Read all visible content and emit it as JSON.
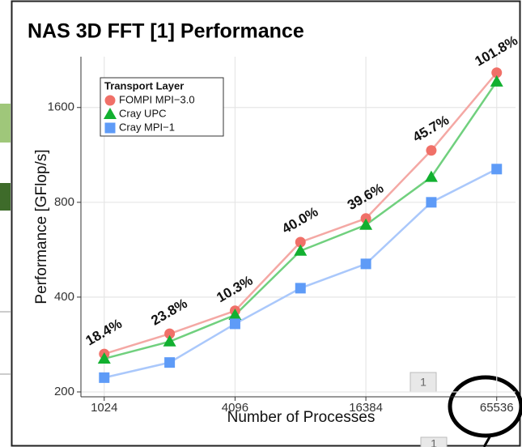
{
  "chart_data": {
    "type": "line",
    "title": "NAS 3D FFT [1] Performance",
    "x_label": "Number of Processes",
    "y_label": "Performance [GFlop/s]",
    "x": [
      1024,
      2048,
      4096,
      8192,
      16384,
      32768,
      65536
    ],
    "xscale": "log2",
    "yscale": "log2",
    "xlim": [
      800,
      80000
    ],
    "ylim": [
      193,
      2320
    ],
    "xticks": [
      1024,
      4096,
      16384,
      65536
    ],
    "yticks": [
      200,
      400,
      800,
      1600
    ],
    "grid": true,
    "legend_title": "Transport Layer",
    "legend_position": "top-left",
    "series": [
      {
        "name": "FOMPI MPI−3.0",
        "color": "#f07068",
        "line_color": "#f4a8a4",
        "marker": "circle",
        "values": [
          264,
          306,
          362,
          598,
          711,
          1169,
          2064
        ]
      },
      {
        "name": "Cray UPC",
        "color": "#12b030",
        "line_color": "#70d07e",
        "marker": "triangle",
        "values": [
          255,
          289,
          351,
          561,
          678,
          962,
          1933
        ]
      },
      {
        "name": "Cray MPI−1",
        "color": "#5e9bf7",
        "line_color": "#aac8fb",
        "marker": "square",
        "values": [
          222,
          248,
          329,
          427,
          510,
          800,
          1020
        ]
      }
    ],
    "annotations": [
      {
        "x": 1024,
        "text": "18.4%"
      },
      {
        "x": 2048,
        "text": "23.8%"
      },
      {
        "x": 4096,
        "text": "10.3%"
      },
      {
        "x": 8192,
        "text": "40.0%"
      },
      {
        "x": 16384,
        "text": "39.6%"
      },
      {
        "x": 32768,
        "text": "45.7%"
      },
      {
        "x": 65536,
        "text": "101.8%"
      }
    ]
  },
  "overlay_labels": [
    "1",
    "1"
  ]
}
